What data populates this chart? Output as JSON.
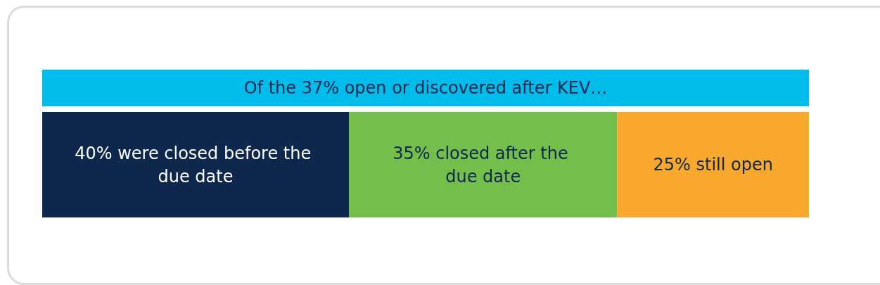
{
  "chart_data": {
    "type": "bar",
    "orientation": "horizontal",
    "stacked": true,
    "title": "Of the 37% open or discovered after KEV…",
    "categories": [
      null
    ],
    "xlim": [
      0,
      100
    ],
    "tick_labels": false,
    "series": [
      {
        "color": "#0e274d",
        "values": [
          40
        ],
        "value_labels": [
          "40% were closed before the due date"
        ]
      },
      {
        "color": "#74bf4b",
        "values": [
          35
        ],
        "value_labels": [
          "35% closed after the due date"
        ]
      },
      {
        "color": "#f9a82e",
        "values": [
          25
        ],
        "value_labels": [
          "25% still open"
        ]
      }
    ]
  }
}
